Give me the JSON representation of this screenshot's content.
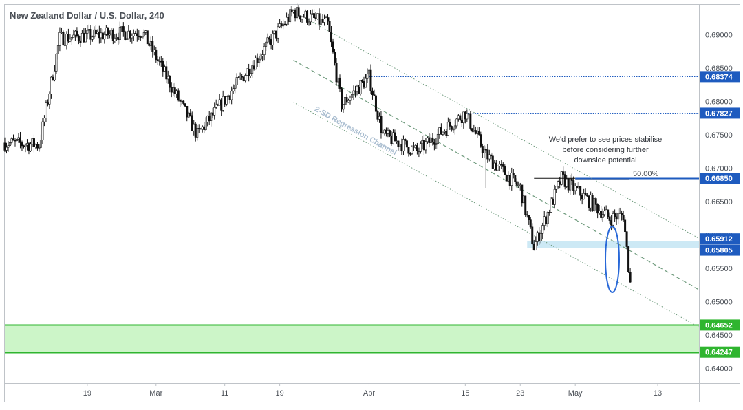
{
  "chart_data": {
    "type": "candlestick",
    "title": "New Zealand Dollar / U.S. Dollar, 240",
    "y_tick_labels": [
      "0.69000",
      "0.68500",
      "0.68000",
      "0.67500",
      "0.67000",
      "0.66500",
      "0.66000",
      "0.65500",
      "0.65000",
      "0.64500",
      "0.64000"
    ],
    "x_tick_labels": [
      "19",
      "Mar",
      "11",
      "19",
      "Apr",
      "15",
      "23",
      "May",
      "13"
    ],
    "ylim": [
      0.6378,
      0.6945
    ],
    "y_axis_side": "right",
    "grid": false,
    "price_labels": [
      {
        "value": 0.68374,
        "text": "0.68374",
        "color": "#1e5bbf",
        "line_style": "dotted"
      },
      {
        "value": 0.67827,
        "text": "0.67827",
        "color": "#1e5bbf",
        "line_style": "dotted"
      },
      {
        "value": 0.6685,
        "text": "0.66850",
        "color": "#1e5bbf",
        "line_style": "solid"
      },
      {
        "value": 0.65912,
        "text": "0.65912",
        "color": "#1e5bbf",
        "line_style": "dotted"
      },
      {
        "value": 0.65805,
        "text": "0.65805",
        "color": "#1e5bbf",
        "line_style": "none"
      },
      {
        "value": 0.64652,
        "text": "0.64652",
        "color": "#2fb52f",
        "line_style": "solid"
      },
      {
        "value": 0.64247,
        "text": "0.64247",
        "color": "#2fb52f",
        "line_style": "solid"
      }
    ],
    "zones": [
      {
        "from": 0.65805,
        "to": 0.65912,
        "color": "#cde9f5",
        "name": "support zone"
      },
      {
        "from": 0.64247,
        "to": 0.64652,
        "color": "#ccf5c8",
        "name": "target zone"
      }
    ],
    "regression_channel": {
      "label": "2-SD Regression Channel",
      "color": "#6e9a7c",
      "upper_start": 0.6935,
      "upper_end": 0.6595,
      "mid_start": 0.6862,
      "mid_end": 0.6518,
      "lower_start": 0.6799,
      "lower_end": 0.6462
    },
    "fib_label": "50.00%",
    "annotation_text": [
      "We'd prefer to see prices stabilise",
      "before considering further",
      "downside potential"
    ],
    "key_points": [
      {
        "x": "Feb 12",
        "y": 0.6735
      },
      {
        "x": "Feb 15",
        "y": 0.6895
      },
      {
        "x": "Feb 27",
        "y": 0.6905
      },
      {
        "x": "Mar 07",
        "y": 0.675
      },
      {
        "x": "Mar 21",
        "y": 0.6935
      },
      {
        "x": "Mar 26",
        "y": 0.6915
      },
      {
        "x": "Mar 28",
        "y": 0.6795
      },
      {
        "x": "Apr 01",
        "y": 0.6837
      },
      {
        "x": "Apr 03",
        "y": 0.675
      },
      {
        "x": "Apr 08",
        "y": 0.6725
      },
      {
        "x": "Apr 15",
        "y": 0.6783
      },
      {
        "x": "Apr 18",
        "y": 0.672
      },
      {
        "x": "Apr 23",
        "y": 0.667
      },
      {
        "x": "Apr 25",
        "y": 0.6582
      },
      {
        "x": "Apr 29",
        "y": 0.6685
      },
      {
        "x": "May 02",
        "y": 0.666
      },
      {
        "x": "May 06",
        "y": 0.6625
      },
      {
        "x": "May 08",
        "y": 0.663
      },
      {
        "x": "May 09",
        "y": 0.6528
      }
    ]
  }
}
